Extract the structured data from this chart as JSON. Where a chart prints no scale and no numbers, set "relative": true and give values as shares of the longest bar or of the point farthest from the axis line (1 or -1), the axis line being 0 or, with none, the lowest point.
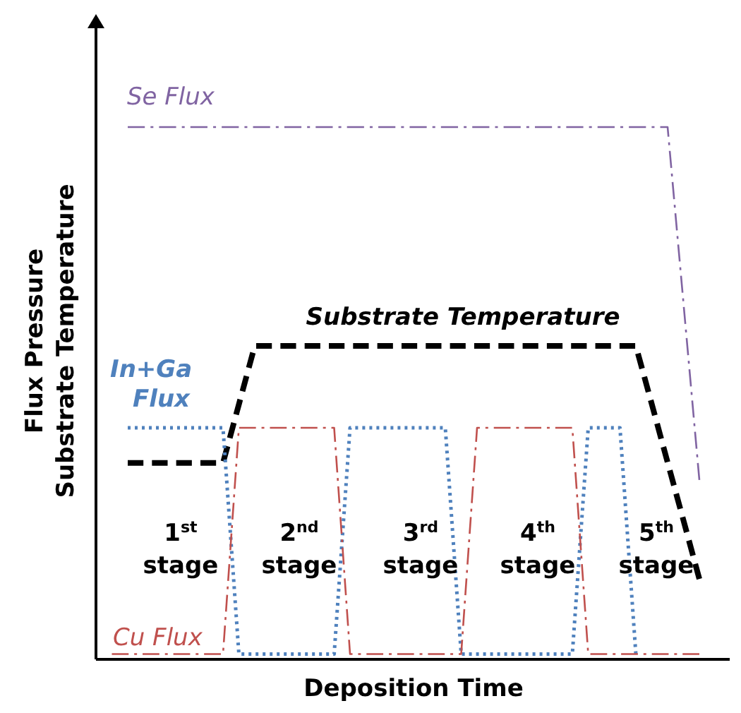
{
  "chart_data": {
    "type": "line",
    "relative": true,
    "xlabel": "Deposition Time",
    "ylabel": "Flux Pressure\nSubstrate Temperature",
    "marker": "none",
    "categories": [
      null,
      null,
      null,
      null,
      null,
      null,
      null,
      null,
      null,
      null,
      null,
      null,
      null,
      null,
      null,
      null,
      null,
      null,
      null,
      null,
      null,
      null,
      null,
      null,
      null,
      null,
      null,
      null,
      null,
      null,
      null,
      null,
      null,
      null,
      null,
      null,
      null,
      null,
      null,
      null,
      null
    ],
    "series": [
      {
        "name": "Se Flux",
        "color": "#8064a2",
        "line_style": "dashdot",
        "values": [
          null,
          null,
          1,
          1,
          1,
          1,
          1,
          1,
          1,
          1,
          1,
          1,
          1,
          1,
          1,
          1,
          1,
          1,
          1,
          1,
          1,
          1,
          1,
          1,
          1,
          1,
          1,
          1,
          1,
          1,
          1,
          1,
          1,
          1,
          1,
          1,
          1,
          0.669,
          0.337,
          null,
          null
        ]
      },
      {
        "name": "Substrate Temperature",
        "color": "#000000",
        "line_style": "dashed",
        "values": [
          null,
          null,
          0.369,
          0.369,
          0.369,
          0.369,
          0.369,
          0.369,
          0.369,
          0.479,
          0.589,
          0.589,
          0.589,
          0.589,
          0.589,
          0.589,
          0.589,
          0.589,
          0.589,
          0.589,
          0.589,
          0.589,
          0.589,
          0.589,
          0.589,
          0.589,
          0.589,
          0.589,
          0.589,
          0.589,
          0.589,
          0.589,
          0.589,
          0.589,
          0.589,
          0.48,
          0.37,
          0.261,
          0.151,
          null,
          null
        ]
      },
      {
        "name": "In+Ga Flux",
        "color": "#4f81bd",
        "line_style": "dotted",
        "values": [
          null,
          null,
          0.435,
          0.435,
          0.435,
          0.435,
          0.435,
          0.435,
          0.435,
          0.01,
          0.01,
          0.01,
          0.01,
          0.01,
          0.01,
          0.01,
          0.435,
          0.435,
          0.435,
          0.435,
          0.435,
          0.435,
          0.435,
          0.01,
          0.01,
          0.01,
          0.01,
          0.01,
          0.01,
          0.01,
          0.01,
          0.435,
          0.435,
          0.435,
          0.01,
          null,
          null,
          null,
          null,
          null,
          null
        ]
      },
      {
        "name": "Cu Flux",
        "color": "#c0504d",
        "line_style": "dashdot",
        "values": [
          null,
          0.01,
          0.01,
          0.01,
          0.01,
          0.01,
          0.01,
          0.01,
          0.01,
          0.435,
          0.435,
          0.435,
          0.435,
          0.435,
          0.435,
          0.435,
          0.01,
          0.01,
          0.01,
          0.01,
          0.01,
          0.01,
          0.01,
          0.01,
          0.435,
          0.435,
          0.435,
          0.435,
          0.435,
          0.435,
          0.435,
          0.01,
          0.01,
          0.01,
          0.01,
          0.01,
          0.01,
          0.01,
          0.01,
          null,
          null
        ]
      }
    ],
    "annotations": [
      "1$^{st}$ stage",
      "2$^{nd}$ stage",
      "3$^{rd}$ stage",
      "4$^{th}$ stage",
      "5$^{th}$ stage"
    ]
  }
}
